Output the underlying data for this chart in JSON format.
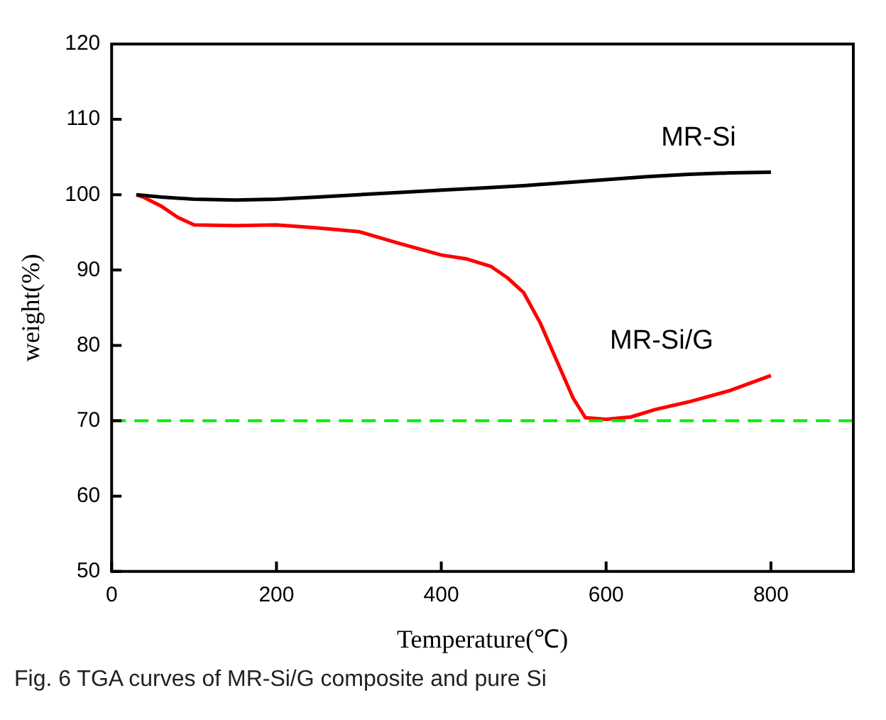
{
  "chart_data": {
    "type": "line",
    "xlabel": "Temperature(℃)",
    "ylabel": "weight(%)",
    "xlim": [
      0,
      900
    ],
    "xticks": [
      0,
      200,
      400,
      600,
      800
    ],
    "ylim": [
      50,
      120
    ],
    "yticks": [
      50,
      60,
      70,
      80,
      90,
      100,
      110,
      120
    ],
    "grid": false,
    "legend": false,
    "marker": "none",
    "line_style": "solid",
    "series": [
      {
        "name": "MR-Si",
        "color": "#000000",
        "x": [
          30,
          60,
          100,
          150,
          200,
          250,
          300,
          350,
          400,
          450,
          500,
          550,
          600,
          650,
          700,
          750,
          800
        ],
        "values": [
          100,
          99.7,
          99.4,
          99.3,
          99.4,
          99.7,
          100,
          100.3,
          100.6,
          100.9,
          101.2,
          101.6,
          102,
          102.4,
          102.7,
          102.9,
          103
        ]
      },
      {
        "name": "MR-Si/G",
        "color": "#ff0000",
        "x": [
          30,
          40,
          60,
          80,
          100,
          150,
          200,
          250,
          300,
          350,
          400,
          430,
          460,
          480,
          500,
          520,
          540,
          560,
          575,
          600,
          630,
          660,
          700,
          750,
          800
        ],
        "values": [
          100,
          99.6,
          98.5,
          97,
          96,
          95.9,
          96,
          95.6,
          95.1,
          93.5,
          92,
          91.5,
          90.5,
          89,
          87,
          83,
          78,
          73,
          70.4,
          70.2,
          70.5,
          71.5,
          72.5,
          74,
          76
        ]
      }
    ],
    "ref_lines": [
      {
        "axis": "y",
        "value": 70,
        "color": "#00ee00",
        "line_style": "dashed"
      }
    ],
    "annotations": [
      "Fig. 6 TGA curves of MR-Si/G composite and pure Si"
    ]
  }
}
